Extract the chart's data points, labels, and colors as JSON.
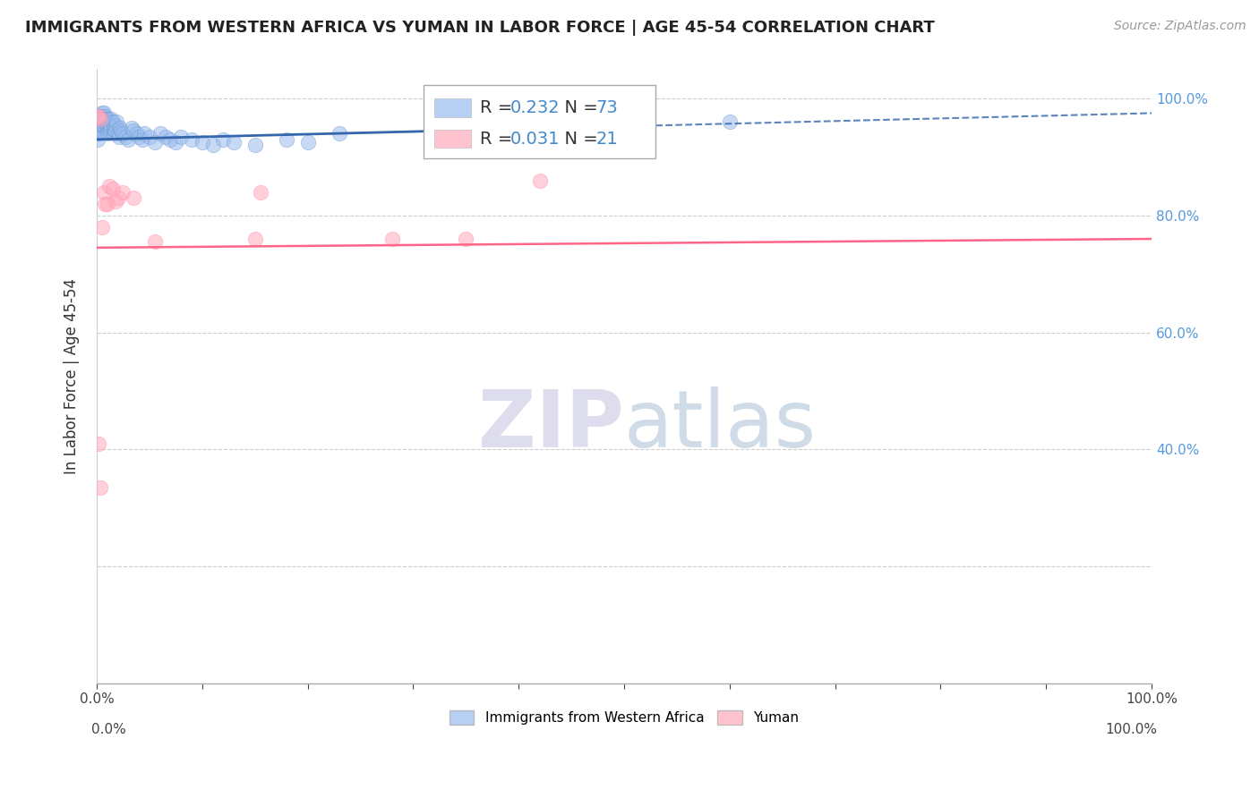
{
  "title": "IMMIGRANTS FROM WESTERN AFRICA VS YUMAN IN LABOR FORCE | AGE 45-54 CORRELATION CHART",
  "source": "Source: ZipAtlas.com",
  "ylabel": "In Labor Force | Age 45-54",
  "legend_label_blue": "Immigrants from Western Africa",
  "legend_label_pink": "Yuman",
  "R_blue": 0.232,
  "N_blue": 73,
  "R_pink": 0.031,
  "N_pink": 21,
  "blue_color": "#99BBEE",
  "pink_color": "#FFAABB",
  "blue_line_color": "#3366AA",
  "pink_line_color": "#FF6688",
  "blue_scatter_x": [
    0.001,
    0.001,
    0.002,
    0.002,
    0.002,
    0.003,
    0.003,
    0.003,
    0.003,
    0.004,
    0.004,
    0.004,
    0.005,
    0.005,
    0.005,
    0.006,
    0.006,
    0.007,
    0.007,
    0.007,
    0.008,
    0.008,
    0.009,
    0.009,
    0.01,
    0.01,
    0.01,
    0.011,
    0.011,
    0.012,
    0.012,
    0.013,
    0.013,
    0.014,
    0.014,
    0.015,
    0.016,
    0.016,
    0.017,
    0.018,
    0.018,
    0.019,
    0.02,
    0.021,
    0.022,
    0.023,
    0.025,
    0.027,
    0.03,
    0.033,
    0.035,
    0.038,
    0.04,
    0.043,
    0.045,
    0.05,
    0.055,
    0.06,
    0.065,
    0.07,
    0.075,
    0.08,
    0.09,
    0.1,
    0.11,
    0.12,
    0.13,
    0.15,
    0.18,
    0.2,
    0.23,
    0.38,
    0.6
  ],
  "blue_scatter_y": [
    0.94,
    0.93,
    0.96,
    0.95,
    0.945,
    0.97,
    0.96,
    0.95,
    0.94,
    0.965,
    0.955,
    0.945,
    0.975,
    0.965,
    0.955,
    0.97,
    0.96,
    0.975,
    0.965,
    0.955,
    0.97,
    0.96,
    0.965,
    0.955,
    0.96,
    0.95,
    0.94,
    0.965,
    0.955,
    0.955,
    0.945,
    0.96,
    0.95,
    0.965,
    0.955,
    0.96,
    0.95,
    0.94,
    0.945,
    0.955,
    0.945,
    0.96,
    0.94,
    0.935,
    0.95,
    0.945,
    0.94,
    0.935,
    0.93,
    0.95,
    0.945,
    0.94,
    0.935,
    0.93,
    0.94,
    0.935,
    0.925,
    0.94,
    0.935,
    0.93,
    0.925,
    0.935,
    0.93,
    0.925,
    0.92,
    0.93,
    0.925,
    0.92,
    0.93,
    0.925,
    0.94,
    0.95,
    0.96
  ],
  "pink_scatter_x": [
    0.001,
    0.002,
    0.003,
    0.005,
    0.007,
    0.008,
    0.01,
    0.012,
    0.015,
    0.018,
    0.02,
    0.025,
    0.035,
    0.055,
    0.15,
    0.155,
    0.28,
    0.35,
    0.42,
    0.002,
    0.003
  ],
  "pink_scatter_y": [
    0.97,
    0.97,
    0.965,
    0.78,
    0.84,
    0.82,
    0.82,
    0.85,
    0.845,
    0.825,
    0.83,
    0.84,
    0.83,
    0.755,
    0.76,
    0.84,
    0.76,
    0.76,
    0.86,
    0.41,
    0.335
  ],
  "blue_trendline_x0": 0.0,
  "blue_trendline_x_solid_end": 0.38,
  "blue_trendline_x1": 1.0,
  "blue_trendline_y0": 0.93,
  "blue_trendline_y1": 0.975,
  "pink_trendline_x0": 0.0,
  "pink_trendline_x1": 1.0,
  "pink_trendline_y0": 0.745,
  "pink_trendline_y1": 0.76,
  "xlim": [
    0.0,
    1.0
  ],
  "ylim": [
    0.0,
    1.05
  ],
  "xticks": [
    0.0,
    0.1,
    0.2,
    0.3,
    0.4,
    0.5,
    0.6,
    0.7,
    0.8,
    0.9,
    1.0
  ],
  "yticks": [
    0.0,
    0.2,
    0.4,
    0.6,
    0.8,
    1.0
  ],
  "xtick_labels_show": [
    "0.0%",
    "",
    "",
    "",
    "",
    "",
    "",
    "",
    "",
    "",
    "100.0%"
  ],
  "ytick_labels_right": [
    "",
    "",
    "40.0%",
    "60.0%",
    "80.0%",
    "100.0%"
  ],
  "grid_color": "#CCCCCC",
  "background_color": "#FFFFFF",
  "watermark_color": "#DDDDEE",
  "title_fontsize": 13,
  "source_fontsize": 10
}
